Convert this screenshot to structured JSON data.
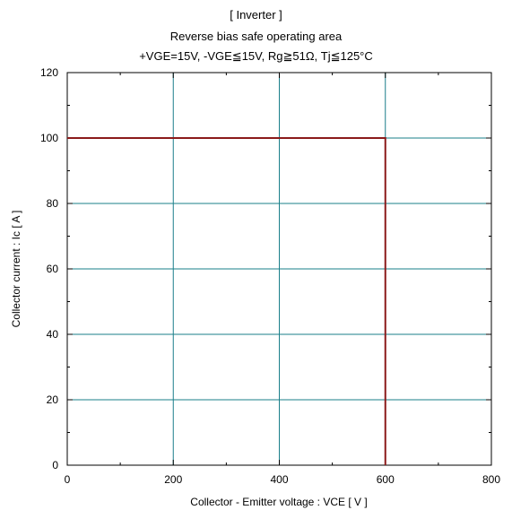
{
  "chart_data": {
    "type": "line",
    "title": "[ Inverter ]",
    "subtitle": "Reverse bias safe operating area",
    "conditions": "+VGE=15V,  -VGE≦15V, Rg≧51Ω,  Tj≦125°C",
    "xlabel": "Collector - Emitter voltage  :  VCE  [ V ]",
    "ylabel": "Collector current  : Ic  [ A ]",
    "xlim": [
      0,
      800
    ],
    "ylim": [
      0,
      120
    ],
    "xticks": [
      0,
      200,
      400,
      600,
      800
    ],
    "yticks": [
      0,
      20,
      40,
      60,
      80,
      100,
      120
    ],
    "grid": true,
    "series": [
      {
        "x": [
          0,
          600,
          600
        ],
        "y": [
          100,
          100,
          0
        ],
        "color": "#8b1a1a"
      }
    ],
    "grid_color": "#1a7f8a"
  }
}
